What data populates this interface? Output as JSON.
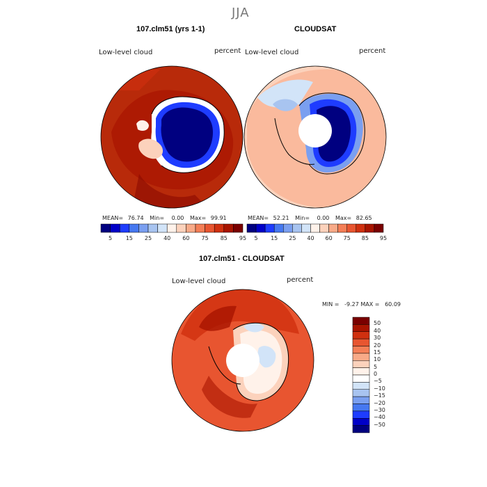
{
  "page": {
    "season": "JJA"
  },
  "panels": [
    {
      "title": "107.clm51 (yrs 1-1)",
      "variable": "Low-level cloud",
      "units": "percent",
      "stats": {
        "mean_label": "MEAN=",
        "mean": "76.74",
        "min_label": "Min=",
        "min": "0.00",
        "max_label": "Max=",
        "max": "99.91"
      }
    },
    {
      "title": "CLOUDSAT",
      "variable": "Low-level cloud",
      "units": "percent",
      "stats": {
        "mean_label": "MEAN=",
        "mean": "52.21",
        "min_label": "Min=",
        "min": "0.00",
        "max_label": "Max=",
        "max": "82.65"
      }
    },
    {
      "title": "107.clm51 - CLOUDSAT",
      "variable": "Low-level cloud",
      "units": "percent",
      "minmax_text": "MIN =   -9.27 MAX =   60.09"
    }
  ],
  "colorbar_abs": {
    "ticks": [
      "5",
      "15",
      "25",
      "40",
      "60",
      "75",
      "85",
      "95"
    ],
    "colors": [
      "#000080",
      "#0000c8",
      "#1e3cff",
      "#4678f0",
      "#7a9ff0",
      "#a8c4f0",
      "#d2e4f8",
      "#fff2ea",
      "#fcd2bc",
      "#f8aa88",
      "#f47e56",
      "#e85530",
      "#d0300f",
      "#a81400",
      "#7a0000"
    ]
  },
  "colorbar_diff": {
    "labels": [
      "50",
      "40",
      "30",
      "20",
      "15",
      "10",
      "5",
      "0",
      "−5",
      "−10",
      "−15",
      "−20",
      "−30",
      "−40",
      "−50"
    ],
    "colors": [
      "#7a0000",
      "#a81400",
      "#d0300f",
      "#e85530",
      "#f47e56",
      "#f8aa88",
      "#fcd2bc",
      "#fff2ea",
      "#ffffff",
      "#d2e4f8",
      "#a8c4f0",
      "#7a9ff0",
      "#4678f0",
      "#1e3cff",
      "#0000c8",
      "#000080"
    ]
  }
}
